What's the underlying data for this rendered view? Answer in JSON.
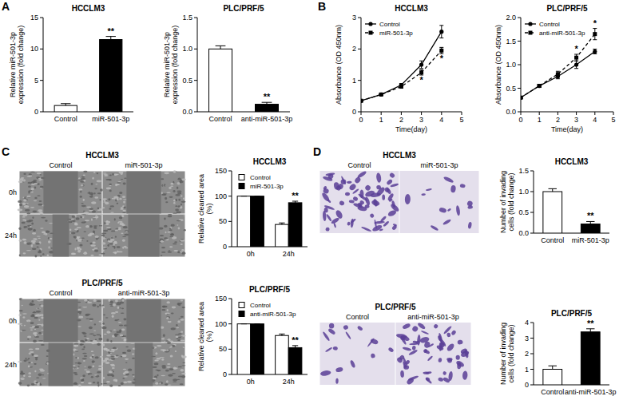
{
  "panel_labels": [
    "A",
    "B",
    "C",
    "D"
  ],
  "image_panels": [
    {
      "title": "HCCLM3",
      "columns": [
        "Control",
        "miR-501-3p"
      ],
      "rows": [
        "0h",
        "24h"
      ]
    },
    {
      "title": "PLC/PRF/5",
      "columns": [
        "Control",
        "anti-miR-501-3p"
      ],
      "rows": [
        "0h",
        "24h"
      ]
    },
    {
      "title": "HCCLM3",
      "columns": [
        "Control",
        "miR-501-3p"
      ]
    },
    {
      "title": "PLC/PRF/5",
      "columns": [
        "Control",
        "anti-miR-501-3p"
      ]
    }
  ],
  "chart_data": [
    {
      "type": "bar",
      "title": "HCCLM3",
      "y_label": "Relative miR-501-3p expression (fold change)",
      "categories": [
        "Control",
        "miR-501-3p"
      ],
      "values": [
        1.0,
        11.5
      ],
      "errors": [
        0.3,
        0.5
      ],
      "colors": [
        "#ffffff",
        "#000000"
      ],
      "annotations": [
        null,
        "**"
      ],
      "ylim": [
        0,
        15
      ],
      "yticks": [
        0,
        5,
        10,
        15
      ]
    },
    {
      "type": "bar",
      "title": "PLC/PRF/5",
      "y_label": "Relative miR-501-3p expression (fold change)",
      "categories": [
        "Control",
        "anti-miR-501-3p"
      ],
      "values": [
        1.0,
        0.12
      ],
      "errors": [
        0.05,
        0.03
      ],
      "colors": [
        "#ffffff",
        "#000000"
      ],
      "annotations": [
        null,
        "**"
      ],
      "ylim": [
        0,
        1.5
      ],
      "yticks": [
        {
          "value": 0,
          "label": "0.0"
        },
        0.5,
        {
          "value": 1,
          "label": "1.0"
        },
        1.5
      ]
    },
    {
      "type": "line",
      "title": "HCCLM3",
      "x_label": "Time(day)",
      "y_label": "Absorbance (OD 450nm)",
      "x": [
        0,
        1,
        2,
        3,
        4
      ],
      "series": [
        {
          "name": "Control",
          "color": "#000000",
          "marker": "circle",
          "line_style": "solid",
          "values": [
            0.35,
            0.55,
            0.85,
            1.5,
            2.55
          ],
          "errors": [
            0.02,
            0.03,
            0.05,
            0.12,
            0.2
          ]
        },
        {
          "name": "miR-501-3p",
          "color": "#000000",
          "marker": "square",
          "line_style": "dashed",
          "values": [
            0.35,
            0.55,
            0.8,
            1.25,
            1.95
          ],
          "errors": [
            0.02,
            0.03,
            0.04,
            0.08,
            0.1
          ],
          "annotations": [
            null,
            null,
            null,
            "*",
            "*"
          ]
        }
      ],
      "xlim": [
        0,
        5
      ],
      "xticks": [
        0,
        1,
        2,
        3,
        4,
        5
      ],
      "ylim": [
        0,
        3
      ],
      "yticks": [
        0,
        1,
        2,
        3
      ],
      "legend": "upper left"
    },
    {
      "type": "line",
      "title": "PLC/PRF/5",
      "x_label": "Time(day)",
      "y_label": "Absorbance (OD 450nm)",
      "x": [
        0,
        1,
        2,
        3,
        4
      ],
      "series": [
        {
          "name": "Control",
          "color": "#000000",
          "marker": "circle",
          "line_style": "solid",
          "values": [
            0.3,
            0.55,
            0.75,
            1.0,
            1.28
          ],
          "errors": [
            0.02,
            0.03,
            0.05,
            0.08,
            0.05
          ]
        },
        {
          "name": "anti-miR-501-3p",
          "color": "#000000",
          "marker": "square",
          "line_style": "dashed",
          "values": [
            0.3,
            0.55,
            0.8,
            1.15,
            1.65
          ],
          "errors": [
            0.02,
            0.03,
            0.06,
            0.07,
            0.12
          ],
          "annotations": [
            null,
            null,
            null,
            "*",
            "*"
          ]
        }
      ],
      "xlim": [
        0,
        5
      ],
      "xticks": [
        0,
        1,
        2,
        3,
        4,
        5
      ],
      "ylim": [
        0,
        2
      ],
      "yticks": [
        {
          "value": 0,
          "label": "0.0"
        },
        0.5,
        {
          "value": 1,
          "label": "1.0"
        },
        1.5,
        {
          "value": 2,
          "label": "2.0"
        }
      ],
      "legend": "upper left"
    },
    {
      "type": "bar",
      "title": "HCCLM3",
      "y_label": "Relative cleaned area (%)",
      "categories": [
        "0h",
        "24h"
      ],
      "series": [
        {
          "name": "Control",
          "color": "#ffffff",
          "values": [
            100,
            44
          ],
          "errors": [
            0,
            3
          ]
        },
        {
          "name": "miR-501-3p",
          "color": "#000000",
          "values": [
            100,
            87
          ],
          "errors": [
            0,
            3
          ],
          "annotations": [
            null,
            "**"
          ]
        }
      ],
      "ylim": [
        0,
        150
      ],
      "yticks": [
        0,
        50,
        100,
        150
      ],
      "legend": "upper left"
    },
    {
      "type": "bar",
      "title": "PLC/PRF/5",
      "y_label": "Relative cleaned area (%)",
      "categories": [
        "0h",
        "24h"
      ],
      "series": [
        {
          "name": "Control",
          "color": "#ffffff",
          "values": [
            100,
            77
          ],
          "errors": [
            0,
            3
          ]
        },
        {
          "name": "anti-miR-501-3p",
          "color": "#000000",
          "values": [
            100,
            53
          ],
          "errors": [
            0,
            4
          ],
          "annotations": [
            null,
            "**"
          ]
        }
      ],
      "ylim": [
        0,
        150
      ],
      "yticks": [
        0,
        50,
        100,
        150
      ],
      "legend": "upper left"
    },
    {
      "type": "bar",
      "title": "HCCLM3",
      "y_label": "Number of invading cells (fold change)",
      "categories": [
        "Control",
        "miR-501-3p"
      ],
      "values": [
        1.0,
        0.22
      ],
      "errors": [
        0.07,
        0.06
      ],
      "colors": [
        "#ffffff",
        "#000000"
      ],
      "annotations": [
        null,
        "**"
      ],
      "ylim": [
        0,
        1.5
      ],
      "yticks": [
        {
          "value": 0,
          "label": "0.0"
        },
        0.5,
        {
          "value": 1,
          "label": "1.0"
        },
        1.5
      ]
    },
    {
      "type": "bar",
      "title": "PLC/PRF/5",
      "y_label": "Number of invading cells (fold change)",
      "categories": [
        "Control",
        "anti-miR-501-3p"
      ],
      "values": [
        1.0,
        3.4
      ],
      "errors": [
        0.22,
        0.2
      ],
      "colors": [
        "#ffffff",
        "#000000"
      ],
      "annotations": [
        null,
        "**"
      ],
      "ylim": [
        0,
        4
      ],
      "yticks": [
        0,
        1,
        2,
        3,
        4
      ]
    }
  ]
}
